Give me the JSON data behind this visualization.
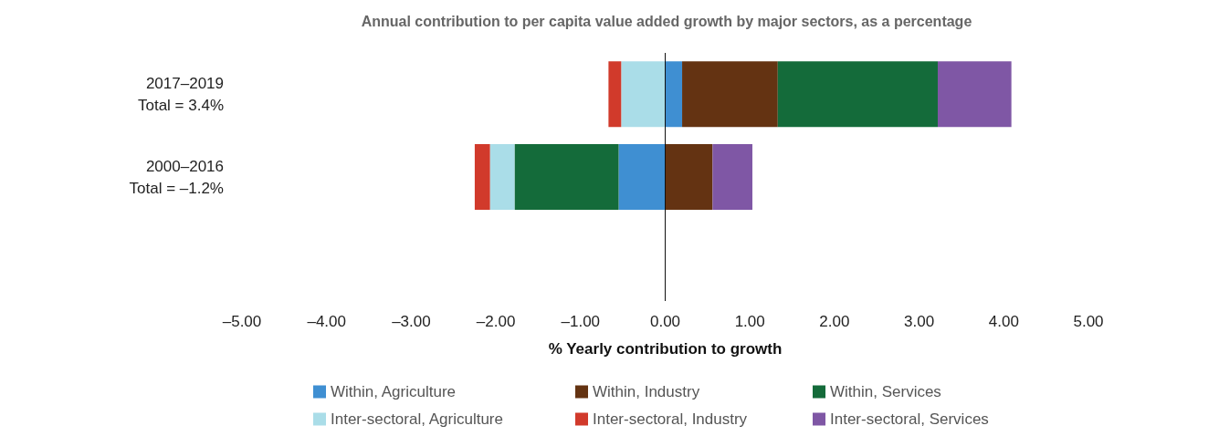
{
  "chart_data": {
    "type": "bar",
    "orientation": "horizontal",
    "stacked": true,
    "title": "Annual contribution to per capita value added growth by major sectors, as a percentage",
    "xlabel": "% Yearly contribution to growth",
    "categories": [
      "2017–2019\nTotal = 3.4%",
      "2000–2016\nTotal = –1.2%",
      null
    ],
    "series": [
      {
        "name": "Within, Agriculture",
        "color": "#3f8fd2",
        "values": [
          0.2,
          -0.55,
          null
        ]
      },
      {
        "name": "Within, Industry",
        "color": "#643312",
        "values": [
          1.13,
          0.56,
          null
        ]
      },
      {
        "name": "Within, Services",
        "color": "#146b3a",
        "values": [
          1.89,
          -1.23,
          null
        ]
      },
      {
        "name": "Inter-sectoral, Agriculture",
        "color": "#aadde8",
        "values": [
          -0.52,
          -0.29,
          null
        ]
      },
      {
        "name": "Inter-sectoral, Industry",
        "color": "#d13a2b",
        "values": [
          -0.15,
          -0.18,
          null
        ]
      },
      {
        "name": "Inter-sectoral, Services",
        "color": "#7f57a5",
        "values": [
          0.87,
          0.47,
          null
        ]
      }
    ],
    "xlim": [
      -5,
      5
    ],
    "xticks": [
      {
        "value": -5,
        "label": "–5.00"
      },
      {
        "value": -4,
        "label": "–4.00"
      },
      {
        "value": -3,
        "label": "–3.00"
      },
      {
        "value": -2,
        "label": "–2.00"
      },
      {
        "value": -1,
        "label": "–1.00"
      },
      {
        "value": 0,
        "label": "0.00"
      },
      {
        "value": 1,
        "label": "1.00"
      },
      {
        "value": 2,
        "label": "2.00"
      },
      {
        "value": 3,
        "label": "3.00"
      },
      {
        "value": 4,
        "label": "4.00"
      },
      {
        "value": 5,
        "label": "5.00"
      }
    ],
    "ref_lines": [
      {
        "axis": "x",
        "value": 0,
        "color": "#111111"
      }
    ],
    "grid": false,
    "legend": "bottom"
  }
}
